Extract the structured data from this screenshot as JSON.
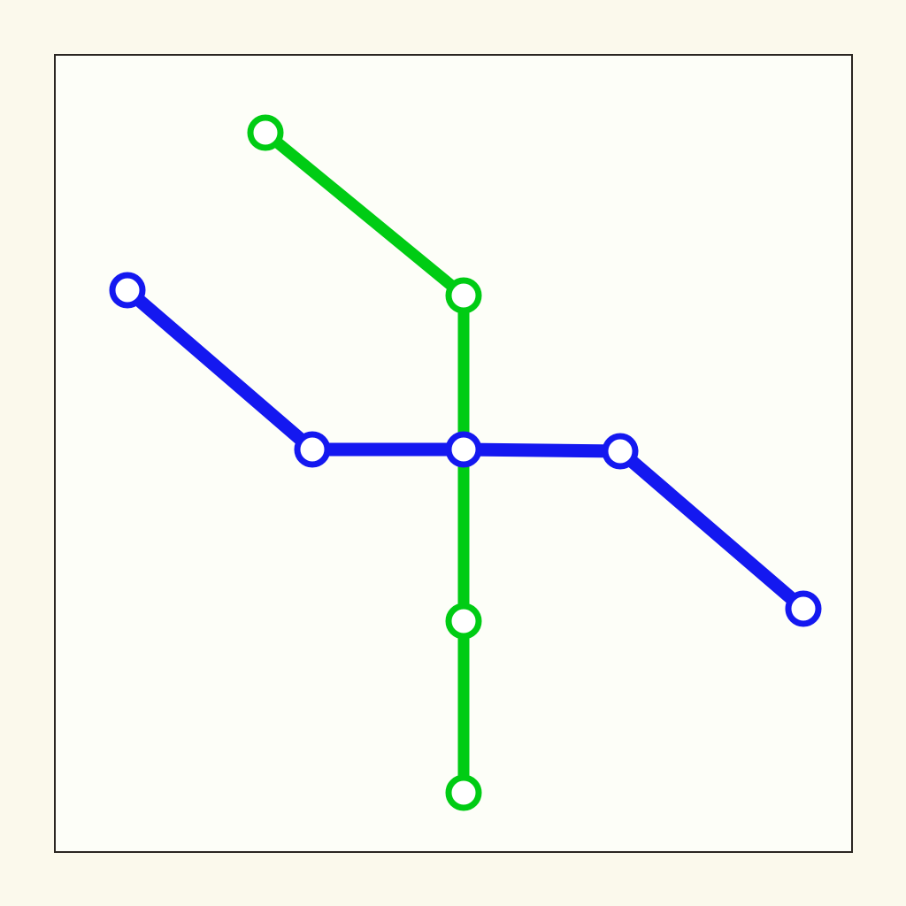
{
  "colors": {
    "page_background": "#fbf9ec",
    "map_background": "#fdfef8",
    "frame_border": "#2a2622",
    "station_fill": "#ffffff"
  },
  "lines": [
    {
      "id": "green",
      "color": "#00cc14",
      "stations": [
        "g1",
        "g2",
        "x",
        "g3",
        "g4"
      ]
    },
    {
      "id": "blue",
      "color": "#1418f0",
      "stations": [
        "b1",
        "b2",
        "x",
        "b3",
        "b4"
      ]
    }
  ],
  "stations": [
    {
      "id": "g1",
      "line": "green"
    },
    {
      "id": "g2",
      "line": "green"
    },
    {
      "id": "g3",
      "line": "green"
    },
    {
      "id": "g4",
      "line": "green"
    },
    {
      "id": "b1",
      "line": "blue"
    },
    {
      "id": "b2",
      "line": "blue"
    },
    {
      "id": "x",
      "line": "blue",
      "interchange": true
    },
    {
      "id": "b3",
      "line": "blue"
    },
    {
      "id": "b4",
      "line": "blue"
    }
  ]
}
